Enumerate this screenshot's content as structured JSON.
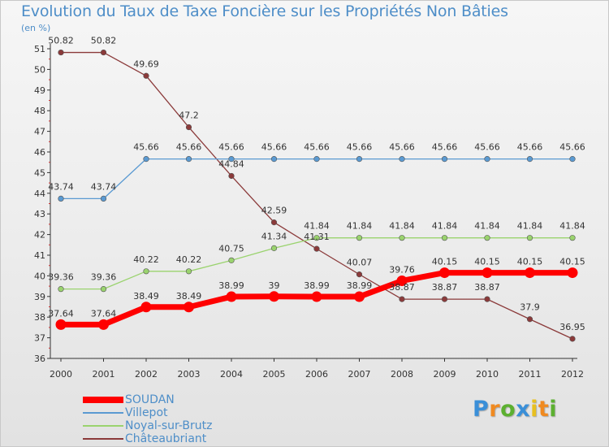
{
  "header": {
    "title": "Evolution du Taux de Taxe Foncière sur les Propriétés Non Bâties",
    "unit": "(en %)"
  },
  "logo": {
    "letters": [
      "P",
      "r",
      "o",
      "x",
      "i",
      "t",
      "i"
    ],
    "colors": [
      "#3a8fd8",
      "#f08a20",
      "#5cb030",
      "#3a8fd8",
      "#e8c020",
      "#f08a20",
      "#5cb030"
    ]
  },
  "chart_data": {
    "type": "line",
    "title": "Evolution du Taux de Taxe Foncière sur les Propriétés Non Bâties",
    "ylabel": "(en %)",
    "xlabel": "",
    "x": [
      "2000",
      "2001",
      "2002",
      "2003",
      "2004",
      "2005",
      "2006",
      "2007",
      "2008",
      "2009",
      "2010",
      "2011",
      "2012"
    ],
    "ylim": [
      36,
      51
    ],
    "yticks": [
      "36",
      "37",
      "38",
      "39",
      "40",
      "41",
      "42",
      "43",
      "44",
      "45",
      "46",
      "47",
      "48",
      "49",
      "50",
      "51"
    ],
    "grid": false,
    "legend": "bottom-left",
    "series": [
      {
        "name": "SOUDAN",
        "color": "#ff0000",
        "values": [
          37.64,
          37.64,
          38.49,
          38.49,
          38.99,
          39,
          38.99,
          38.99,
          39.76,
          40.15,
          40.15,
          40.15,
          40.15
        ],
        "labels": [
          "37.64",
          "37.64",
          "38.49",
          "38.49",
          "38.99",
          "39",
          "38.99",
          "38.99",
          "39.76",
          "40.15",
          "40.15",
          "40.15",
          "40.15"
        ]
      },
      {
        "name": "Villepot",
        "color": "#5a9ad2",
        "values": [
          43.74,
          43.74,
          45.66,
          45.66,
          45.66,
          45.66,
          45.66,
          45.66,
          45.66,
          45.66,
          45.66,
          45.66,
          45.66
        ],
        "labels": [
          "43.74",
          "43.74",
          "45.66",
          "45.66",
          "45.66",
          "45.66",
          "45.66",
          "45.66",
          "45.66",
          "45.66",
          "45.66",
          "45.66",
          "45.66"
        ]
      },
      {
        "name": "Noyal-sur-Brutz",
        "color": "#9ad36e",
        "values": [
          39.36,
          39.36,
          40.22,
          40.22,
          40.75,
          41.34,
          41.84,
          41.84,
          41.84,
          41.84,
          41.84,
          41.84,
          41.84
        ],
        "labels": [
          "39.36",
          "39.36",
          "40.22",
          "40.22",
          "40.75",
          "41.34",
          "41.84",
          "41.84",
          "41.84",
          "41.84",
          "41.84",
          "41.84",
          "41.84"
        ]
      },
      {
        "name": "Châteaubriant",
        "color": "#8b3a3a",
        "values": [
          50.82,
          50.82,
          49.69,
          47.2,
          44.84,
          42.59,
          41.31,
          40.07,
          38.87,
          38.87,
          38.87,
          37.9,
          36.95
        ],
        "labels": [
          "50.82",
          "50.82",
          "49.69",
          "47.2",
          "44.84",
          "42.59",
          "41.31",
          "40.07",
          "38.87",
          "38.87",
          "38.87",
          "37.9",
          "36.95"
        ]
      }
    ]
  }
}
